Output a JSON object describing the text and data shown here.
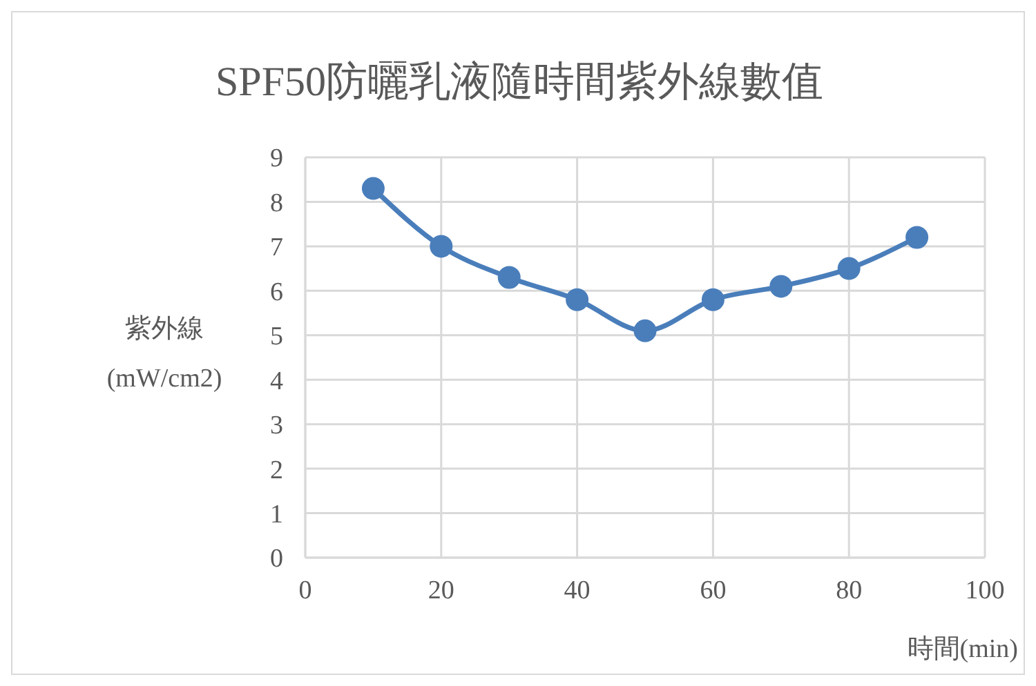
{
  "chart_data": {
    "type": "line",
    "title": "SPF50防曬乳液隨時間紫外線數值",
    "xlabel": "時間(min)",
    "ylabel": "紫外線\n(mW/cm2)",
    "x": [
      10,
      20,
      30,
      40,
      50,
      60,
      70,
      80,
      90
    ],
    "series": [
      {
        "color": "#4a7ebb",
        "values": [
          8.3,
          7.0,
          6.3,
          5.8,
          5.1,
          5.8,
          6.1,
          6.5,
          7.2
        ]
      }
    ],
    "xlim": [
      0,
      100
    ],
    "xticks": [
      0,
      20,
      40,
      60,
      80,
      100
    ],
    "ylim": [
      0,
      9
    ],
    "yticks": [
      0,
      1,
      2,
      3,
      4,
      5,
      6,
      7,
      8,
      9
    ],
    "grid": true,
    "legend": false,
    "marker": "circle",
    "line_style": "solid"
  }
}
